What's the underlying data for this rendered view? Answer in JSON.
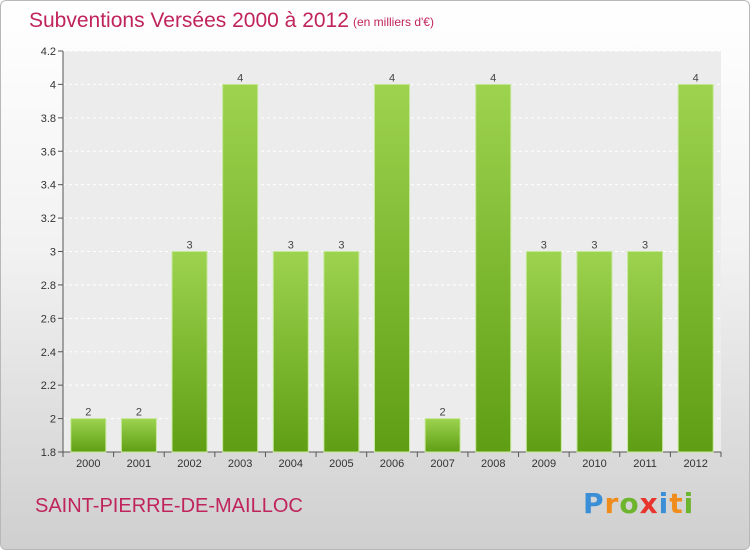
{
  "header": {
    "title": "Subventions Versées 2000 à 2012",
    "unit": "(en milliers d'€)"
  },
  "footer": {
    "commune": "SAINT-PIERRE-DE-MAILLOC",
    "brand_letters": [
      "P",
      "r",
      "o",
      "x",
      "i",
      "t",
      "i"
    ],
    "brand_colors": [
      "#3b8fd6",
      "#f08c1c",
      "#6cb52d",
      "#e8342c",
      "#3b8fd6",
      "#f08c1c",
      "#6cb52d"
    ]
  },
  "chart_data": {
    "type": "bar",
    "title": "Subventions Versées 2000 à 2012",
    "subtitle": "(en milliers d'€)",
    "categories": [
      "2000",
      "2001",
      "2002",
      "2003",
      "2004",
      "2005",
      "2006",
      "2007",
      "2008",
      "2009",
      "2010",
      "2011",
      "2012"
    ],
    "values": [
      2,
      2,
      3,
      4,
      3,
      3,
      4,
      2,
      4,
      3,
      3,
      3,
      4
    ],
    "ylim": [
      1.8,
      4.2
    ],
    "yticks": [
      "1.8",
      "2",
      "2.2",
      "2.4",
      "2.6",
      "2.8",
      "3",
      "3.2",
      "3.4",
      "3.6",
      "3.8",
      "4",
      "4.2"
    ],
    "grid": true,
    "bar_color": "#7cc234",
    "label_values": true
  }
}
